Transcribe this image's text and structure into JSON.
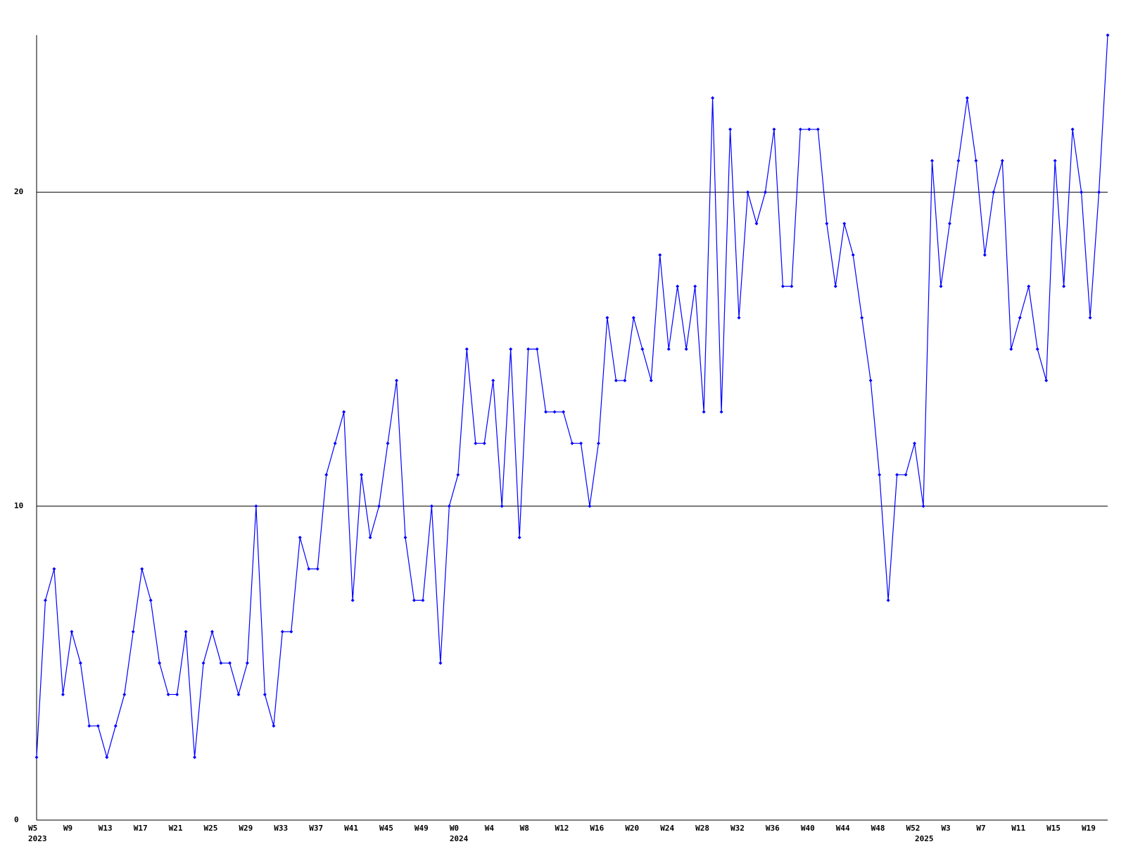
{
  "chart_data": {
    "type": "line",
    "color": "#0000ff",
    "grid": true,
    "ylim": [
      0,
      25
    ],
    "yticks": [
      0,
      10,
      20
    ],
    "categories": [
      "W5",
      null,
      null,
      null,
      "W9",
      null,
      null,
      null,
      "W13",
      null,
      null,
      null,
      "W17",
      null,
      null,
      null,
      "W21",
      null,
      null,
      null,
      "W25",
      null,
      null,
      null,
      "W29",
      null,
      null,
      null,
      "W33",
      null,
      null,
      null,
      "W37",
      null,
      null,
      null,
      "W41",
      null,
      null,
      null,
      "W45",
      null,
      null,
      null,
      "W49",
      null,
      null,
      null,
      "W0",
      null,
      null,
      null,
      "W4",
      null,
      null,
      null,
      "W8",
      null,
      null,
      null,
      "W12",
      null,
      null,
      null,
      "W16",
      null,
      null,
      null,
      "W20",
      null,
      null,
      null,
      "W24",
      null,
      null,
      null,
      "W28",
      null,
      null,
      null,
      "W32",
      null,
      null,
      null,
      "W36",
      null,
      null,
      null,
      "W40",
      null,
      null,
      null,
      "W44",
      null,
      null,
      null,
      "W48",
      null,
      null,
      null,
      "W52",
      null,
      null,
      null,
      "W3",
      null,
      null,
      null,
      "W7",
      null,
      null,
      null,
      "W11",
      null,
      null,
      null,
      "W15",
      null,
      null,
      null,
      "W19",
      null,
      null
    ],
    "years": [
      "2023",
      null,
      null,
      null,
      null,
      null,
      null,
      null,
      null,
      null,
      null,
      null,
      null,
      null,
      null,
      null,
      null,
      null,
      null,
      null,
      null,
      null,
      null,
      null,
      null,
      null,
      null,
      null,
      null,
      null,
      null,
      null,
      null,
      null,
      null,
      null,
      null,
      null,
      null,
      null,
      null,
      null,
      null,
      null,
      null,
      null,
      null,
      null,
      "2024",
      null,
      null,
      null,
      null,
      null,
      null,
      null,
      null,
      null,
      null,
      null,
      null,
      null,
      null,
      null,
      null,
      null,
      null,
      null,
      null,
      null,
      null,
      null,
      null,
      null,
      null,
      null,
      null,
      null,
      null,
      null,
      null,
      null,
      null,
      null,
      null,
      null,
      null,
      null,
      null,
      null,
      null,
      null,
      null,
      null,
      null,
      null,
      null,
      null,
      null,
      null,
      null,
      "2025",
      null,
      null,
      null,
      null,
      null,
      null,
      null,
      null,
      null,
      null,
      null,
      null,
      null,
      null,
      null,
      null,
      null,
      null,
      null,
      null,
      null
    ],
    "values": [
      2,
      7,
      8,
      4,
      6,
      5,
      3,
      3,
      2,
      3,
      4,
      6,
      8,
      7,
      5,
      4,
      4,
      6,
      2,
      5,
      6,
      5,
      5,
      4,
      5,
      10,
      4,
      3,
      6,
      6,
      9,
      8,
      8,
      11,
      12,
      13,
      7,
      11,
      9,
      10,
      12,
      14,
      9,
      7,
      7,
      10,
      5,
      10,
      11,
      15,
      12,
      12,
      14,
      10,
      15,
      9,
      15,
      15,
      13,
      13,
      13,
      12,
      12,
      10,
      12,
      16,
      14,
      14,
      16,
      15,
      14,
      18,
      15,
      17,
      15,
      17,
      13,
      23,
      13,
      22,
      16,
      20,
      19,
      20,
      22,
      17,
      17,
      22,
      22,
      22,
      19,
      17,
      19,
      18,
      16,
      14,
      11,
      7,
      11,
      11,
      12,
      10,
      21,
      17,
      19,
      21,
      23,
      21,
      18,
      20,
      21,
      15,
      16,
      17,
      15,
      14,
      21,
      17,
      22,
      20,
      16,
      20,
      25
    ]
  }
}
